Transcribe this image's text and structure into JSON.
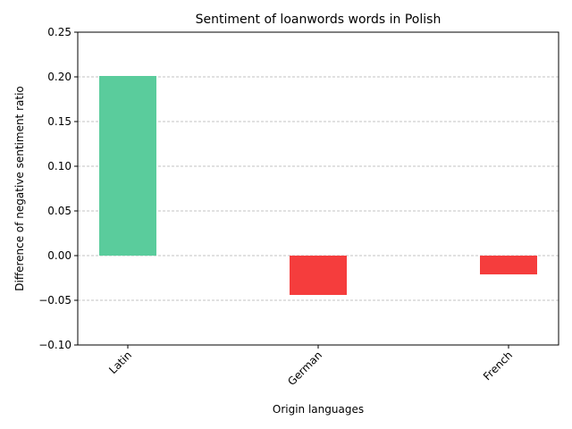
{
  "chart_data": {
    "type": "bar",
    "title": "Sentiment of loanwords words in Polish",
    "xlabel": "Origin languages",
    "ylabel": "Difference of negative sentiment ratio",
    "categories": [
      "Latin",
      "German",
      "French"
    ],
    "values": [
      0.201,
      -0.044,
      -0.021
    ],
    "ylim": [
      -0.1,
      0.25
    ],
    "yticks": [
      -0.1,
      -0.05,
      0.0,
      0.05,
      0.1,
      0.15,
      0.2,
      0.25
    ],
    "ytick_labels": [
      "−0.10",
      "−0.05",
      "0.00",
      "0.05",
      "0.10",
      "0.15",
      "0.20",
      "0.25"
    ],
    "grid": "y-dashed",
    "positive_color": "#5acc9c",
    "negative_color": "#f53d3d",
    "grid_color": "#b0b0b0"
  }
}
